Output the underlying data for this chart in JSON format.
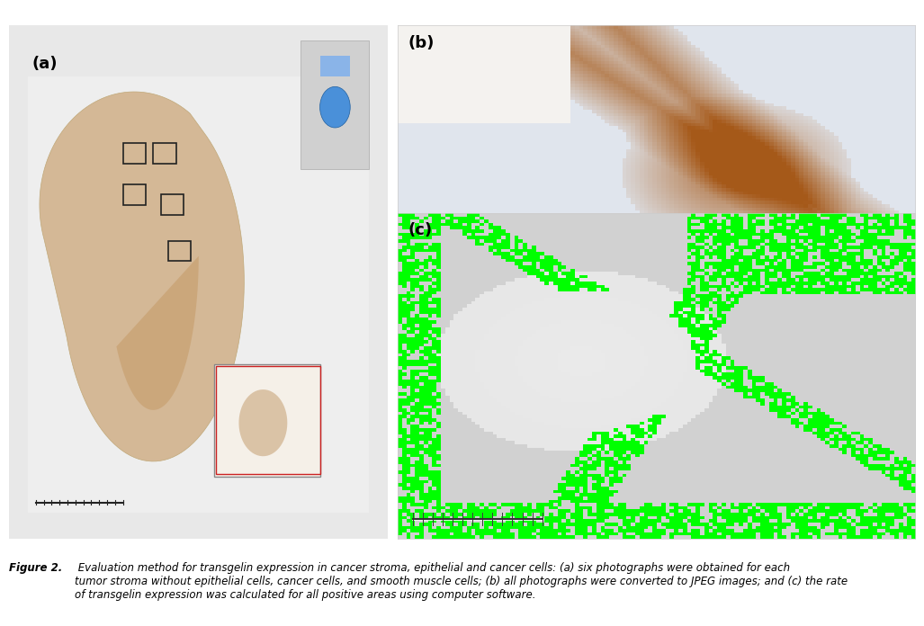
{
  "fig_width": 10.27,
  "fig_height": 6.96,
  "bg_color": "#ffffff",
  "panel_a_label": "(a)",
  "panel_b_label": "(b)",
  "panel_c_label": "(c)",
  "label_fontsize": 13,
  "label_fontweight": "bold",
  "caption_bold": "Figure 2.",
  "caption_italic": " Evaluation method for transgelin expression in cancer stroma, epithelial and cancer cells: (a) six photographs were obtained for each\ntumor stroma without epithelial cells, cancer cells, and smooth muscle cells; (b) all photographs were converted to JPEG images; and (c) the rate\nof transgelin expression was calculated for all positive areas using computer software.",
  "caption_fontsize": 8.5,
  "tissue_bg": "#ede5d8",
  "tissue_dark": "#c8a882",
  "tissue_stain_brown": "#8B5E3C",
  "tissue_blue": "#b0c4d8",
  "green_overlay": "#00ff00",
  "panel_a_bg": "#e8e8e8",
  "panel_a_tissue_color": "#d4b896",
  "scale_bar_color": "#222222"
}
